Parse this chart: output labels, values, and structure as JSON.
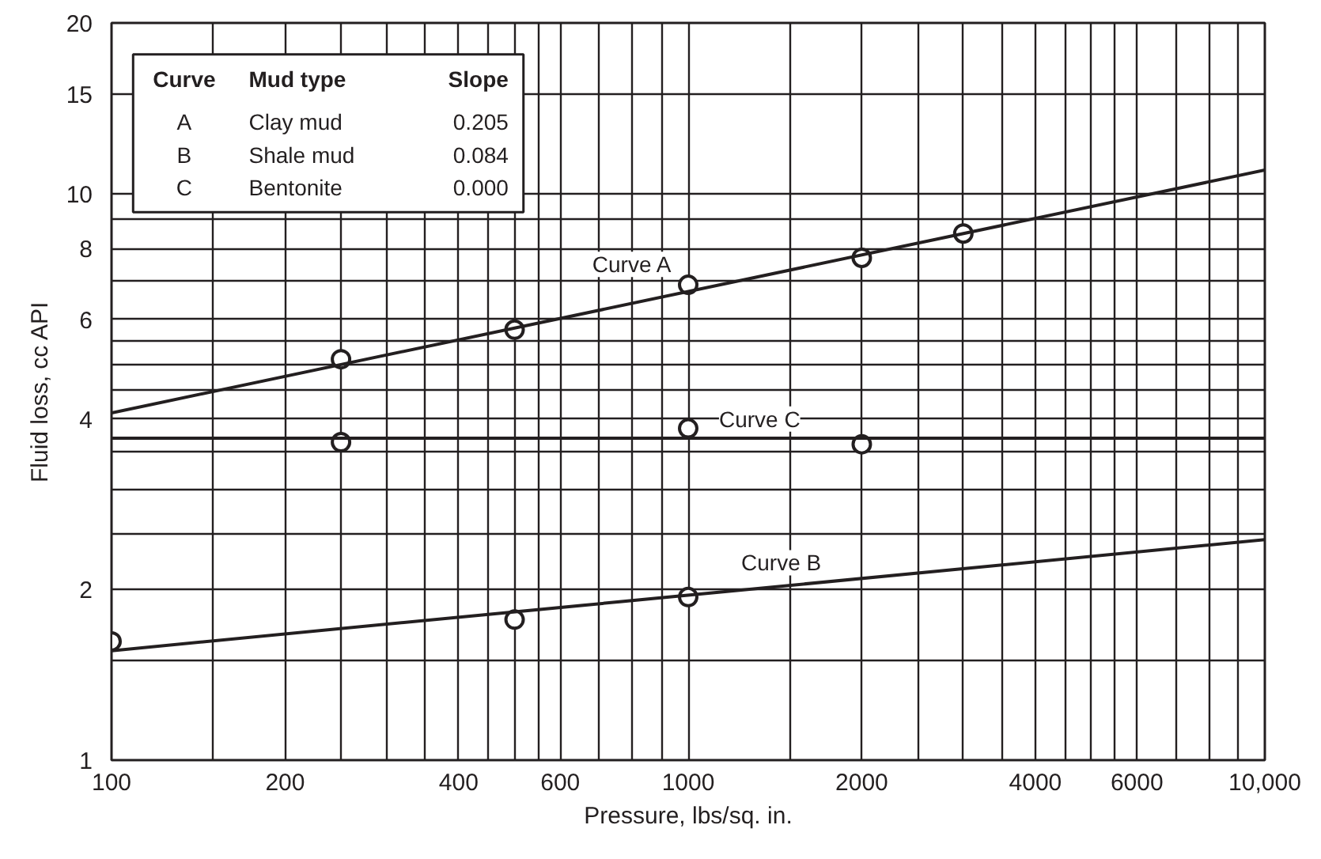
{
  "chart_data": {
    "type": "scatter",
    "xlabel": "Pressure, lbs/sq. in.",
    "ylabel": "Fluid loss, cc API",
    "log": "xy",
    "grid": true,
    "xlim": [
      100,
      10000
    ],
    "ylim": [
      1,
      20
    ],
    "xticks": [
      100,
      {
        "value": 150,
        "label": null
      },
      200,
      {
        "value": 250,
        "label": null
      },
      {
        "value": 300,
        "label": null
      },
      {
        "value": 350,
        "label": null
      },
      400,
      {
        "value": 450,
        "label": null
      },
      {
        "value": 500,
        "label": null
      },
      {
        "value": 550,
        "label": null
      },
      600,
      {
        "value": 700,
        "label": null
      },
      {
        "value": 800,
        "label": null
      },
      {
        "value": 900,
        "label": null
      },
      1000,
      {
        "value": 1500,
        "label": null
      },
      2000,
      {
        "value": 2500,
        "label": null
      },
      {
        "value": 3000,
        "label": null
      },
      {
        "value": 3500,
        "label": null
      },
      4000,
      {
        "value": 4500,
        "label": null
      },
      {
        "value": 5000,
        "label": null
      },
      {
        "value": 5500,
        "label": null
      },
      6000,
      {
        "value": 7000,
        "label": null
      },
      {
        "value": 8000,
        "label": null
      },
      {
        "value": 9000,
        "label": null
      },
      {
        "value": 10000,
        "label": "10,000"
      }
    ],
    "yticks": [
      1,
      {
        "value": 1.5,
        "label": null
      },
      2,
      {
        "value": 2.5,
        "label": null
      },
      {
        "value": 3,
        "label": null
      },
      {
        "value": 3.5,
        "label": null
      },
      4,
      {
        "value": 4.5,
        "label": null
      },
      {
        "value": 5,
        "label": null
      },
      {
        "value": 5.5,
        "label": null
      },
      6,
      {
        "value": 7,
        "label": null
      },
      8,
      {
        "value": 9,
        "label": null
      },
      10,
      15,
      20
    ],
    "series": [
      {
        "marker": "circle",
        "color": "#231f20",
        "x": [
          250,
          500,
          1000,
          2000,
          3000
        ],
        "values": [
          5.1,
          5.75,
          6.9,
          7.7,
          8.5
        ]
      },
      {
        "marker": "circle",
        "color": "#231f20",
        "x": [
          100,
          500,
          1000
        ],
        "values": [
          1.62,
          1.77,
          1.94
        ]
      },
      {
        "marker": "circle",
        "color": "#231f20",
        "x": [
          250,
          1000,
          2000
        ],
        "values": [
          3.64,
          3.85,
          3.61
        ]
      },
      {
        "type": "line",
        "marker": "none",
        "color": "#231f20",
        "x": [
          100,
          10000
        ],
        "values": [
          4.1,
          11.0
        ]
      },
      {
        "type": "line",
        "marker": "none",
        "color": "#231f20",
        "x": [
          100,
          10000
        ],
        "values": [
          1.56,
          2.45
        ]
      },
      {
        "type": "line",
        "marker": "none",
        "color": "#231f20",
        "x": [
          100,
          10000
        ],
        "values": [
          3.7,
          3.7
        ]
      }
    ],
    "annotations": [
      "Curve",
      "Mud type",
      "Slope",
      "A",
      "Clay mud",
      "0.205",
      "B",
      "Shale mud",
      "0.084",
      "C",
      "Bentonite",
      "0.000",
      "Curve A",
      "Curve C",
      "Curve B"
    ]
  }
}
